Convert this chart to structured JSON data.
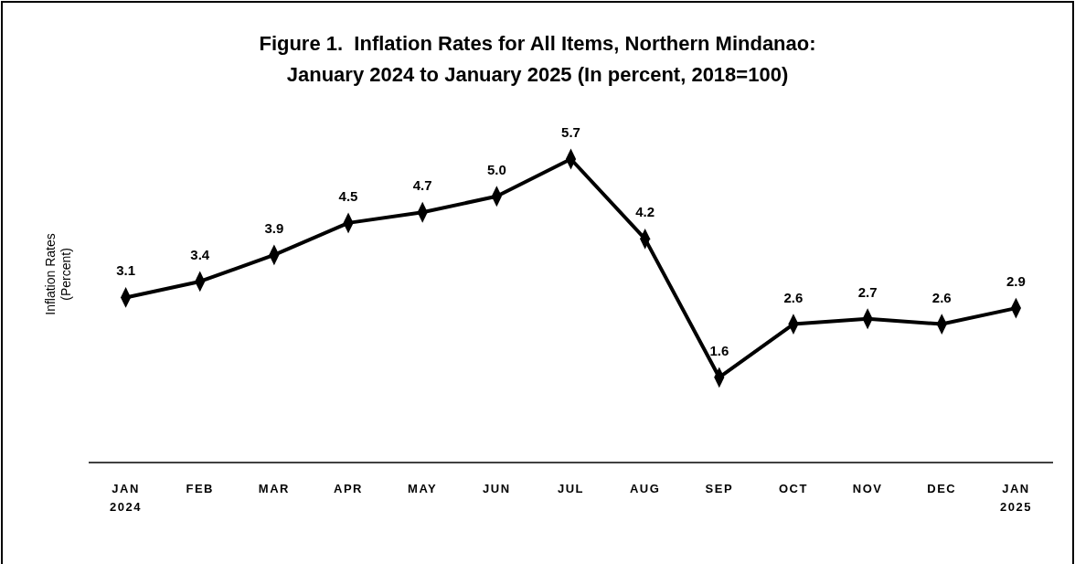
{
  "chart_data": {
    "type": "line",
    "title": "Figure 1.  Inflation Rates for All Items, Northern Mindanao:\nJanuary 2024 to January 2025 (In percent, 2018=100)",
    "ylabel": "Inflation Rates\n(Percent)",
    "categories": [
      "JAN\n2024",
      "FEB",
      "MAR",
      "APR",
      "MAY",
      "JUN",
      "JUL",
      "AUG",
      "SEP",
      "OCT",
      "NOV",
      "DEC",
      "JAN\n2025"
    ],
    "series": [
      {
        "color": "#000000",
        "values": [
          3.1,
          3.4,
          3.9,
          4.5,
          4.7,
          5.0,
          5.7,
          4.2,
          1.6,
          2.6,
          2.7,
          2.6,
          2.9
        ],
        "value_labels": [
          "3.1",
          "3.4",
          "3.9",
          "4.5",
          "4.7",
          "5.0",
          "5.7",
          "4.2",
          "1.6",
          "2.6",
          "2.7",
          "2.6",
          "2.9"
        ]
      }
    ],
    "marker": "diamond",
    "line_style": "solid"
  }
}
